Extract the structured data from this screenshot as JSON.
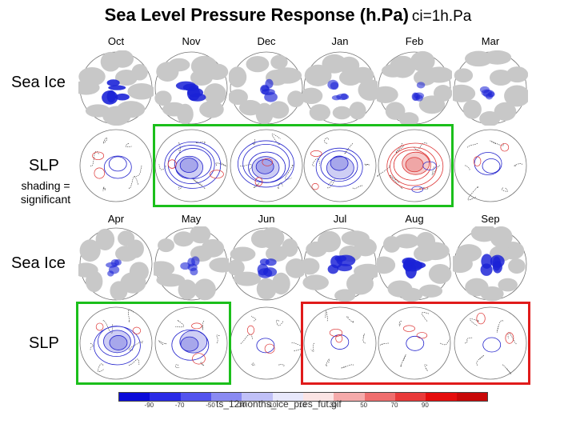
{
  "title": "Sea Level Pressure Response (h.Pa)",
  "contour_interval": "ci=1h.Pa",
  "months_top": [
    "Oct",
    "Nov",
    "Dec",
    "Jan",
    "Feb",
    "Mar"
  ],
  "months_bottom": [
    "Apr",
    "May",
    "Jun",
    "Jul",
    "Aug",
    "Sep"
  ],
  "row_labels": {
    "sea_ice": "Sea Ice",
    "slp": "SLP",
    "significance_line1": "shading =",
    "significance_line2": "significant"
  },
  "colorbar": {
    "ticks": [
      "-90",
      "-70",
      "-50",
      "-30",
      "-10",
      "10",
      "30",
      "50",
      "70",
      "90"
    ],
    "colors": [
      "#0b0bd9",
      "#2a2ae6",
      "#5353ee",
      "#8a8af2",
      "#c0c0f7",
      "#e8e8fb",
      "#fbe4e4",
      "#f5aaaa",
      "#ef6e6e",
      "#e93a3a",
      "#e50d0d",
      "#c80808"
    ]
  },
  "filename": "ts_12months_ice_pres_fut.gif",
  "colors": {
    "highlight_green": "#1bbf1b",
    "highlight_red": "#e01b1b",
    "negative": "#2222cc",
    "positive": "#dd3333"
  }
}
